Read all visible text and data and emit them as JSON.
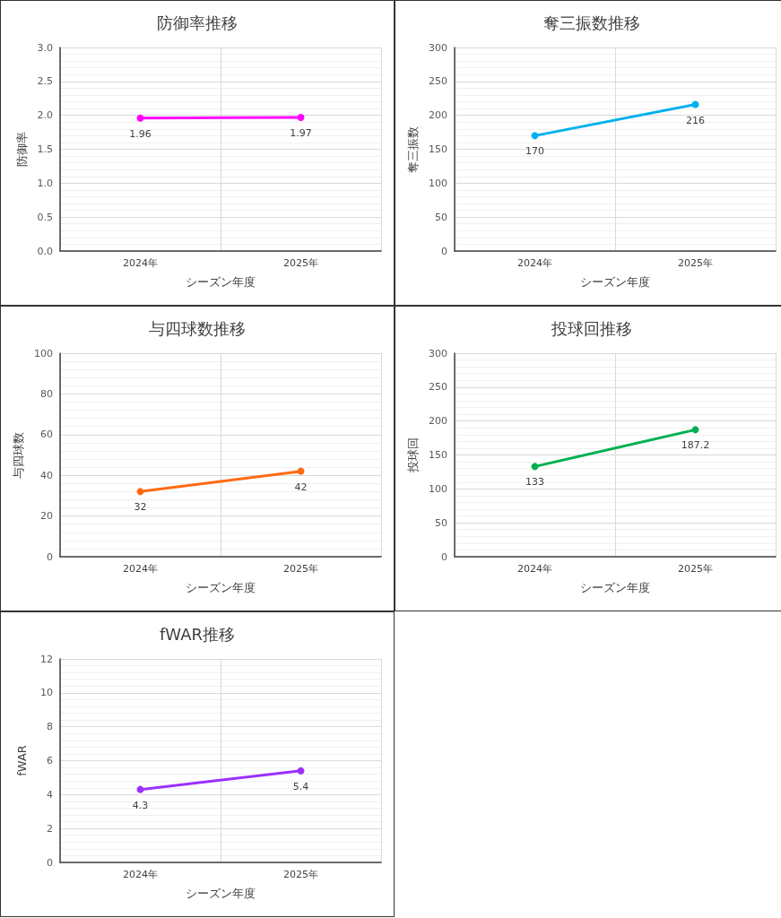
{
  "chart_data": [
    {
      "type": "line",
      "title": "防御率推移",
      "xlabel": "シーズン年度",
      "ylabel": "防御率",
      "categories": [
        "2024年",
        "2025年"
      ],
      "series": [
        {
          "color": "#ff00ff",
          "values": [
            1.96,
            1.97
          ]
        }
      ],
      "ylim": [
        0,
        3
      ],
      "yticks": [
        {
          "value": 0,
          "label": "0.0"
        },
        {
          "value": 0.5,
          "label": "0.5"
        },
        {
          "value": 1,
          "label": "1.0"
        },
        {
          "value": 1.5,
          "label": "1.5"
        },
        {
          "value": 2,
          "label": "2.0"
        },
        {
          "value": 2.5,
          "label": "2.5"
        },
        {
          "value": 3,
          "label": "3.0"
        }
      ],
      "grid": true,
      "marker": "circle",
      "line_style": "solid",
      "data_labels": true
    },
    {
      "type": "line",
      "title": "奪三振数推移",
      "xlabel": "シーズン年度",
      "ylabel": "奪三振数",
      "categories": [
        "2024年",
        "2025年"
      ],
      "series": [
        {
          "color": "#00b0f0",
          "values": [
            170,
            216
          ]
        }
      ],
      "ylim": [
        0,
        300
      ],
      "yticks": [
        0,
        50,
        100,
        150,
        200,
        250,
        300
      ],
      "grid": true,
      "marker": "circle",
      "line_style": "solid",
      "data_labels": true
    },
    {
      "type": "line",
      "title": "与四球数推移",
      "xlabel": "シーズン年度",
      "ylabel": "与四球数",
      "categories": [
        "2024年",
        "2025年"
      ],
      "series": [
        {
          "color": "#ff6a10",
          "values": [
            32,
            42
          ]
        }
      ],
      "ylim": [
        0,
        100
      ],
      "yticks": [
        0,
        20,
        40,
        60,
        80,
        100
      ],
      "grid": true,
      "marker": "circle",
      "line_style": "solid",
      "data_labels": true
    },
    {
      "type": "line",
      "title": "投球回推移",
      "xlabel": "シーズン年度",
      "ylabel": "投球回",
      "categories": [
        "2024年",
        "2025年"
      ],
      "series": [
        {
          "color": "#00b050",
          "values": [
            133,
            187.2
          ]
        }
      ],
      "ylim": [
        0,
        300
      ],
      "yticks": [
        0,
        50,
        100,
        150,
        200,
        250,
        300
      ],
      "grid": true,
      "marker": "circle",
      "line_style": "solid",
      "data_labels": true
    },
    {
      "type": "line",
      "title": "fWAR推移",
      "xlabel": "シーズン年度",
      "ylabel": "fWAR",
      "categories": [
        "2024年",
        "2025年"
      ],
      "series": [
        {
          "color": "#9b30ff",
          "values": [
            4.3,
            5.4
          ]
        }
      ],
      "ylim": [
        0,
        12
      ],
      "yticks": [
        0,
        2,
        4,
        6,
        8,
        10,
        12
      ],
      "grid": true,
      "marker": "circle",
      "line_style": "solid",
      "data_labels": true
    }
  ]
}
